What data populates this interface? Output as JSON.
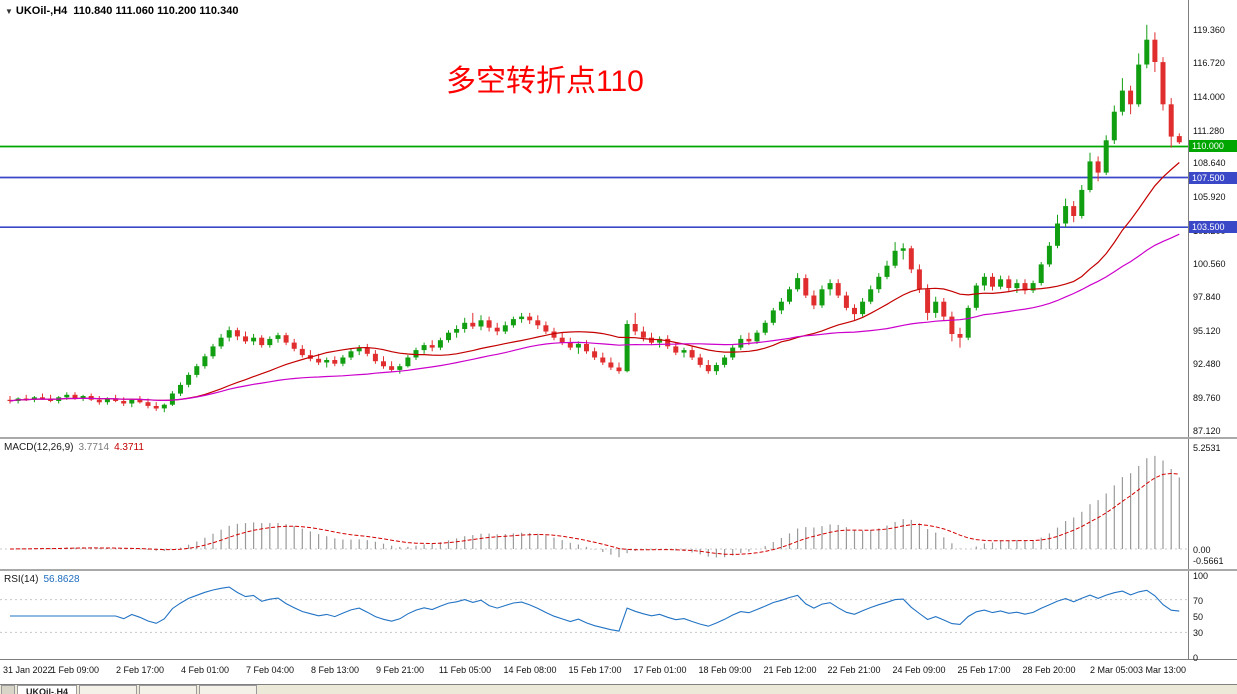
{
  "header": {
    "symbol": "UKOil-,H4",
    "ohlc": "110.840 111.060 110.200 110.340"
  },
  "annotation": {
    "text": "多空转折点110",
    "color": "#FF0000"
  },
  "indicators": {
    "macd": {
      "name": "MACD(12,26,9)",
      "value_main": "3.7714",
      "value_signal": "4.3711",
      "ticks": [
        {
          "value": 5.2531,
          "label": "5.2531"
        },
        {
          "value": 0,
          "label": "0.00"
        },
        {
          "value": -0.5661,
          "label": "-0.5661"
        }
      ]
    },
    "rsi": {
      "name": "RSI(14)",
      "value": "56.8628",
      "ticks": [
        100,
        70,
        50,
        30,
        0
      ],
      "levels": [
        70,
        30
      ]
    }
  },
  "price_scale": {
    "ticks": [
      119.36,
      116.72,
      114.0,
      111.28,
      108.64,
      105.92,
      103.2,
      100.56,
      97.84,
      95.12,
      92.48,
      89.76,
      87.12
    ]
  },
  "hlines": [
    {
      "value": 110.0,
      "label": "110.000",
      "color": "#00a600"
    },
    {
      "value": 107.5,
      "label": "107.500",
      "color": "#3a48c8"
    },
    {
      "value": 103.5,
      "label": "103.500",
      "color": "#3a48c8"
    }
  ],
  "tabs": {
    "active_label": "UKOil-,H4"
  },
  "theme": {
    "up": "#119e11",
    "down": "#e02e2e",
    "ma_fast": "#c40000",
    "ma_slow": "#cc00cc",
    "macd_hist": "#9a9a9a",
    "macd_signal": "#d40000",
    "rsi_line": "#2273c4",
    "hline_green": "#00a600",
    "hline_blue": "#3a48c8"
  },
  "chart_data": {
    "type": "candlestick",
    "title": "UKOil-,H4",
    "symbol": "UKOil-",
    "timeframe": "H4",
    "last_ohlc": {
      "open": 110.84,
      "high": 111.06,
      "low": 110.2,
      "close": 110.34
    },
    "y_range": [
      86.6,
      121.8
    ],
    "x_labels": [
      "31 Jan 2022",
      "1 Feb 09:00",
      "2 Feb 17:00",
      "4 Feb 01:00",
      "7 Feb 04:00",
      "8 Feb 13:00",
      "9 Feb 21:00",
      "11 Feb 05:00",
      "14 Feb 08:00",
      "15 Feb 17:00",
      "17 Feb 01:00",
      "18 Feb 09:00",
      "21 Feb 12:00",
      "22 Feb 21:00",
      "24 Feb 09:00",
      "25 Feb 17:00",
      "28 Feb 20:00",
      "2 Mar 05:00",
      "3 Mar 13:00"
    ],
    "moving_averages": [
      {
        "period": 20,
        "color": "#c40000"
      },
      {
        "period": 45,
        "color": "#cc00cc"
      }
    ],
    "macd_params": {
      "fast": 12,
      "slow": 26,
      "signal": 9
    },
    "rsi_period": 14,
    "ohlc": [
      [
        89.6,
        89.9,
        89.3,
        89.5
      ],
      [
        89.5,
        89.8,
        89.3,
        89.7
      ],
      [
        89.7,
        90.0,
        89.5,
        89.6
      ],
      [
        89.6,
        89.9,
        89.4,
        89.8
      ],
      [
        89.8,
        90.1,
        89.6,
        89.7
      ],
      [
        89.7,
        90.0,
        89.4,
        89.5
      ],
      [
        89.5,
        89.9,
        89.3,
        89.8
      ],
      [
        89.8,
        90.2,
        89.6,
        90.0
      ],
      [
        90.0,
        90.2,
        89.6,
        89.7
      ],
      [
        89.7,
        90.0,
        89.5,
        89.9
      ],
      [
        89.9,
        90.1,
        89.5,
        89.6
      ],
      [
        89.6,
        89.9,
        89.2,
        89.4
      ],
      [
        89.4,
        89.8,
        89.2,
        89.7
      ],
      [
        89.7,
        90.0,
        89.4,
        89.5
      ],
      [
        89.5,
        89.8,
        89.1,
        89.3
      ],
      [
        89.3,
        89.7,
        89.0,
        89.6
      ],
      [
        89.6,
        89.9,
        89.3,
        89.4
      ],
      [
        89.4,
        89.7,
        88.9,
        89.1
      ],
      [
        89.1,
        89.4,
        88.7,
        88.9
      ],
      [
        88.9,
        89.3,
        88.6,
        89.2
      ],
      [
        89.2,
        90.3,
        89.1,
        90.1
      ],
      [
        90.1,
        91.0,
        89.9,
        90.8
      ],
      [
        90.8,
        91.8,
        90.6,
        91.6
      ],
      [
        91.6,
        92.5,
        91.4,
        92.3
      ],
      [
        92.3,
        93.3,
        92.1,
        93.1
      ],
      [
        93.1,
        94.1,
        92.9,
        93.9
      ],
      [
        93.9,
        94.9,
        93.7,
        94.6
      ],
      [
        94.6,
        95.5,
        94.3,
        95.2
      ],
      [
        95.2,
        95.4,
        94.4,
        94.7
      ],
      [
        94.7,
        95.1,
        94.1,
        94.3
      ],
      [
        94.3,
        94.9,
        94.0,
        94.6
      ],
      [
        94.6,
        94.8,
        93.8,
        94.0
      ],
      [
        94.0,
        94.7,
        93.8,
        94.5
      ],
      [
        94.5,
        95.0,
        94.2,
        94.8
      ],
      [
        94.8,
        95.0,
        94.0,
        94.2
      ],
      [
        94.2,
        94.5,
        93.5,
        93.7
      ],
      [
        93.7,
        94.0,
        93.0,
        93.2
      ],
      [
        93.2,
        93.6,
        92.7,
        92.9
      ],
      [
        92.9,
        93.3,
        92.4,
        92.6
      ],
      [
        92.6,
        93.0,
        92.2,
        92.8
      ],
      [
        92.8,
        93.1,
        92.3,
        92.5
      ],
      [
        92.5,
        93.2,
        92.3,
        93.0
      ],
      [
        93.0,
        93.7,
        92.8,
        93.5
      ],
      [
        93.5,
        94.0,
        93.2,
        93.8
      ],
      [
        93.8,
        94.1,
        93.1,
        93.3
      ],
      [
        93.3,
        93.6,
        92.5,
        92.7
      ],
      [
        92.7,
        93.1,
        92.1,
        92.3
      ],
      [
        92.3,
        92.7,
        91.8,
        92.0
      ],
      [
        92.0,
        92.5,
        91.7,
        92.3
      ],
      [
        92.3,
        93.2,
        92.2,
        93.0
      ],
      [
        93.0,
        93.8,
        92.8,
        93.6
      ],
      [
        93.6,
        94.2,
        93.3,
        94.0
      ],
      [
        94.0,
        94.4,
        93.5,
        93.8
      ],
      [
        93.8,
        94.6,
        93.6,
        94.4
      ],
      [
        94.4,
        95.2,
        94.2,
        95.0
      ],
      [
        95.0,
        95.6,
        94.6,
        95.3
      ],
      [
        95.3,
        96.2,
        95.0,
        95.8
      ],
      [
        95.8,
        96.6,
        95.3,
        95.5
      ],
      [
        95.5,
        96.4,
        95.2,
        96.0
      ],
      [
        96.0,
        96.3,
        95.1,
        95.4
      ],
      [
        95.4,
        95.8,
        94.8,
        95.1
      ],
      [
        95.1,
        95.9,
        94.9,
        95.6
      ],
      [
        95.6,
        96.3,
        95.4,
        96.1
      ],
      [
        96.1,
        96.6,
        95.8,
        96.3
      ],
      [
        96.3,
        96.6,
        95.7,
        96.0
      ],
      [
        96.0,
        96.4,
        95.3,
        95.6
      ],
      [
        95.6,
        95.9,
        94.9,
        95.1
      ],
      [
        95.1,
        95.4,
        94.4,
        94.6
      ],
      [
        94.6,
        95.0,
        94.0,
        94.2
      ],
      [
        94.2,
        94.6,
        93.6,
        93.8
      ],
      [
        93.8,
        94.3,
        93.3,
        94.1
      ],
      [
        94.1,
        94.4,
        93.3,
        93.5
      ],
      [
        93.5,
        93.8,
        92.8,
        93.0
      ],
      [
        93.0,
        93.4,
        92.4,
        92.6
      ],
      [
        92.6,
        93.0,
        92.0,
        92.2
      ],
      [
        92.2,
        92.6,
        91.7,
        91.9
      ],
      [
        91.9,
        96.0,
        91.8,
        95.7
      ],
      [
        95.7,
        96.6,
        94.8,
        95.1
      ],
      [
        95.1,
        95.5,
        94.3,
        94.6
      ],
      [
        94.6,
        95.0,
        94.0,
        94.2
      ],
      [
        94.2,
        94.7,
        93.8,
        94.5
      ],
      [
        94.5,
        94.8,
        93.7,
        93.9
      ],
      [
        93.9,
        94.2,
        93.2,
        93.4
      ],
      [
        93.4,
        93.8,
        93.0,
        93.6
      ],
      [
        93.6,
        93.9,
        92.8,
        93.0
      ],
      [
        93.0,
        93.3,
        92.2,
        92.4
      ],
      [
        92.4,
        92.8,
        91.7,
        91.9
      ],
      [
        91.9,
        92.6,
        91.6,
        92.4
      ],
      [
        92.4,
        93.2,
        92.2,
        93.0
      ],
      [
        93.0,
        94.0,
        92.8,
        93.8
      ],
      [
        93.8,
        94.8,
        93.6,
        94.5
      ],
      [
        94.5,
        95.0,
        94.0,
        94.3
      ],
      [
        94.3,
        95.2,
        94.1,
        95.0
      ],
      [
        95.0,
        96.0,
        94.8,
        95.8
      ],
      [
        95.8,
        97.0,
        95.6,
        96.8
      ],
      [
        96.8,
        97.8,
        96.5,
        97.5
      ],
      [
        97.5,
        98.7,
        97.3,
        98.5
      ],
      [
        98.5,
        99.8,
        98.3,
        99.4
      ],
      [
        99.4,
        99.7,
        97.8,
        98.0
      ],
      [
        98.0,
        98.4,
        96.9,
        97.2
      ],
      [
        97.2,
        98.8,
        97.0,
        98.5
      ],
      [
        98.5,
        99.3,
        98.0,
        99.0
      ],
      [
        99.0,
        99.3,
        97.8,
        98.0
      ],
      [
        98.0,
        98.3,
        96.8,
        97.0
      ],
      [
        97.0,
        97.3,
        96.0,
        96.5
      ],
      [
        96.5,
        97.8,
        96.3,
        97.5
      ],
      [
        97.5,
        98.8,
        97.3,
        98.5
      ],
      [
        98.5,
        99.8,
        98.2,
        99.5
      ],
      [
        99.5,
        100.8,
        99.3,
        100.4
      ],
      [
        100.4,
        102.3,
        100.2,
        101.6
      ],
      [
        101.6,
        102.2,
        100.9,
        101.8
      ],
      [
        101.8,
        102.0,
        99.8,
        100.1
      ],
      [
        100.1,
        100.5,
        98.2,
        98.5
      ],
      [
        98.5,
        98.9,
        96.0,
        96.6
      ],
      [
        96.6,
        97.9,
        96.2,
        97.5
      ],
      [
        97.5,
        97.8,
        96.0,
        96.3
      ],
      [
        96.3,
        96.7,
        94.3,
        94.9
      ],
      [
        94.9,
        95.4,
        93.8,
        94.6
      ],
      [
        94.6,
        97.2,
        94.4,
        97.0
      ],
      [
        97.0,
        99.0,
        96.8,
        98.8
      ],
      [
        98.8,
        99.8,
        98.4,
        99.5
      ],
      [
        99.5,
        99.8,
        98.4,
        98.7
      ],
      [
        98.7,
        99.6,
        98.5,
        99.3
      ],
      [
        99.3,
        99.6,
        98.3,
        98.6
      ],
      [
        98.6,
        99.3,
        98.2,
        99.0
      ],
      [
        99.0,
        99.3,
        98.1,
        98.4
      ],
      [
        98.4,
        99.2,
        98.2,
        99.0
      ],
      [
        99.0,
        100.7,
        98.8,
        100.5
      ],
      [
        100.5,
        102.3,
        100.3,
        102.0
      ],
      [
        102.0,
        104.5,
        101.8,
        103.8
      ],
      [
        103.8,
        105.8,
        103.5,
        105.2
      ],
      [
        105.2,
        105.6,
        103.9,
        104.4
      ],
      [
        104.4,
        106.9,
        104.2,
        106.5
      ],
      [
        106.5,
        109.5,
        106.3,
        108.8
      ],
      [
        108.8,
        109.2,
        107.2,
        107.9
      ],
      [
        107.9,
        110.9,
        107.7,
        110.5
      ],
      [
        110.5,
        113.3,
        110.2,
        112.8
      ],
      [
        112.8,
        115.5,
        112.5,
        114.5
      ],
      [
        114.5,
        114.9,
        112.6,
        113.4
      ],
      [
        113.4,
        117.5,
        113.2,
        116.6
      ],
      [
        116.6,
        119.8,
        116.3,
        118.6
      ],
      [
        118.6,
        119.2,
        116.0,
        116.8
      ],
      [
        116.8,
        117.2,
        112.9,
        113.4
      ],
      [
        113.4,
        113.9,
        109.9,
        110.8
      ],
      [
        110.84,
        111.06,
        110.2,
        110.34
      ]
    ]
  }
}
